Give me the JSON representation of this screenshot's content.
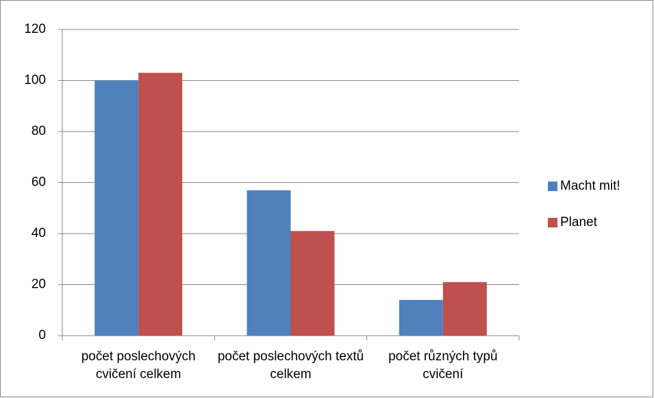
{
  "chart_data": {
    "type": "bar",
    "categories": [
      "počet poslechových cvičení celkem",
      "počet poslechových textů celkem",
      "počet různých typů cvičení"
    ],
    "series": [
      {
        "name": "Macht mit!",
        "color": "#4f81bd",
        "values": [
          100,
          57,
          14
        ]
      },
      {
        "name": "Planet",
        "color": "#c0504d",
        "values": [
          103,
          41,
          21
        ]
      }
    ],
    "ylim": [
      0,
      120
    ],
    "yticks": [
      0,
      20,
      40,
      60,
      80,
      100,
      120
    ],
    "grid": true,
    "legend": "right"
  }
}
